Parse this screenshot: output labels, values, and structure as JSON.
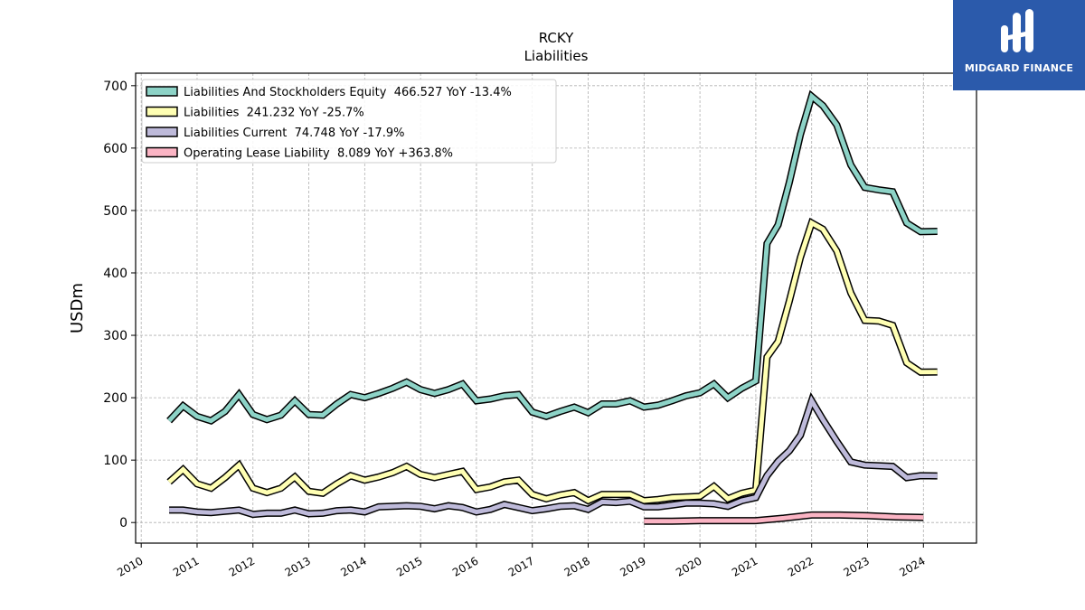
{
  "logo": {
    "text": "MIDGARD FINANCE",
    "background": "#2b5aab"
  },
  "chart_data": {
    "type": "line",
    "title": "RCKY",
    "subtitle": "Liabilities",
    "ylabel": "USDm",
    "xlabel": "",
    "xlim": [
      2009.9,
      2024.95
    ],
    "ylim": [
      -33,
      720
    ],
    "yticks": [
      0,
      100,
      200,
      300,
      400,
      500,
      600,
      700
    ],
    "xticks": [
      "2010",
      "2011",
      "2012",
      "2013",
      "2014",
      "2015",
      "2016",
      "2017",
      "2018",
      "2019",
      "2020",
      "2021",
      "2022",
      "2023",
      "2024"
    ],
    "grid": true,
    "legend_position": "top-left",
    "series": [
      {
        "name": "Liabilities And Stockholders Equity  466.527 YoY -13.4%",
        "color": "#8dd3c7",
        "x": [
          2010.5,
          2010.75,
          2011.0,
          2011.25,
          2011.5,
          2011.75,
          2012.0,
          2012.25,
          2012.5,
          2012.75,
          2013.0,
          2013.25,
          2013.5,
          2013.75,
          2014.0,
          2014.25,
          2014.5,
          2014.75,
          2015.0,
          2015.25,
          2015.5,
          2015.75,
          2016.0,
          2016.25,
          2016.5,
          2016.75,
          2017.0,
          2017.25,
          2017.5,
          2017.75,
          2018.0,
          2018.25,
          2018.5,
          2018.75,
          2019.0,
          2019.25,
          2019.5,
          2019.75,
          2020.0,
          2020.25,
          2020.5,
          2020.75,
          2021.0,
          2021.2,
          2021.4,
          2021.6,
          2021.8,
          2022.0,
          2022.2,
          2022.45,
          2022.7,
          2022.95,
          2023.2,
          2023.45,
          2023.7,
          2023.95,
          2024.25
        ],
        "y": [
          163,
          187,
          170,
          163,
          178,
          205,
          173,
          165,
          172,
          195,
          173,
          172,
          190,
          205,
          200,
          207,
          215,
          225,
          213,
          207,
          213,
          222,
          195,
          198,
          203,
          205,
          177,
          170,
          178,
          185,
          176,
          190,
          190,
          195,
          185,
          188,
          195,
          203,
          208,
          222,
          200,
          215,
          227,
          447,
          477,
          545,
          622,
          683,
          668,
          637,
          573,
          537,
          533,
          530,
          480,
          466,
          466.527
        ]
      },
      {
        "name": "Liabilities  241.232 YoY -25.7%",
        "color": "#ffffb3",
        "x": [
          2010.5,
          2010.75,
          2011.0,
          2011.25,
          2011.5,
          2011.75,
          2012.0,
          2012.25,
          2012.5,
          2012.75,
          2013.0,
          2013.25,
          2013.5,
          2013.75,
          2014.0,
          2014.25,
          2014.5,
          2014.75,
          2015.0,
          2015.25,
          2015.5,
          2015.75,
          2016.0,
          2016.25,
          2016.5,
          2016.75,
          2017.0,
          2017.25,
          2017.5,
          2017.75,
          2018.0,
          2018.25,
          2018.5,
          2018.75,
          2019.0,
          2019.25,
          2019.5,
          2019.75,
          2020.0,
          2020.25,
          2020.5,
          2020.75,
          2021.0,
          2021.2,
          2021.4,
          2021.6,
          2021.8,
          2022.0,
          2022.2,
          2022.45,
          2022.7,
          2022.95,
          2023.2,
          2023.45,
          2023.7,
          2023.95,
          2024.25
        ],
        "y": [
          65,
          85,
          62,
          55,
          72,
          92,
          55,
          48,
          55,
          73,
          50,
          47,
          62,
          75,
          68,
          73,
          80,
          90,
          77,
          72,
          77,
          82,
          53,
          57,
          65,
          68,
          45,
          38,
          44,
          48,
          35,
          45,
          45,
          45,
          35,
          37,
          40,
          41,
          42,
          58,
          38,
          47,
          52,
          265,
          290,
          355,
          425,
          480,
          470,
          435,
          368,
          324,
          323,
          316,
          256,
          241,
          241.232
        ]
      },
      {
        "name": "Liabilities Current  74.748 YoY -17.9%",
        "color": "#bebada",
        "x": [
          2010.5,
          2010.75,
          2011.0,
          2011.25,
          2011.5,
          2011.75,
          2012.0,
          2012.25,
          2012.5,
          2012.75,
          2013.0,
          2013.25,
          2013.5,
          2013.75,
          2014.0,
          2014.25,
          2014.5,
          2014.75,
          2015.0,
          2015.25,
          2015.5,
          2015.75,
          2016.0,
          2016.25,
          2016.5,
          2016.75,
          2017.0,
          2017.25,
          2017.5,
          2017.75,
          2018.0,
          2018.25,
          2018.5,
          2018.75,
          2019.0,
          2019.25,
          2019.5,
          2019.75,
          2020.0,
          2020.25,
          2020.5,
          2020.75,
          2021.0,
          2021.2,
          2021.4,
          2021.6,
          2021.8,
          2022.0,
          2022.2,
          2022.45,
          2022.7,
          2022.95,
          2023.2,
          2023.45,
          2023.7,
          2023.95,
          2024.25
        ],
        "y": [
          20,
          20,
          17,
          16,
          18,
          20,
          13,
          15,
          15,
          20,
          14,
          15,
          19,
          20,
          17,
          25,
          26,
          27,
          26,
          22,
          27,
          24,
          17,
          21,
          29,
          24,
          19,
          22,
          26,
          27,
          21,
          33,
          32,
          34,
          25,
          25,
          28,
          31,
          31,
          30,
          26,
          35,
          40,
          75,
          98,
          115,
          140,
          195,
          165,
          130,
          97,
          92,
          91,
          90,
          72,
          75,
          74.748
        ]
      },
      {
        "name": "Operating Lease Liability  8.089 YoY +363.8%",
        "color": "#fbb4c4",
        "x": [
          2019.0,
          2019.5,
          2020.0,
          2020.5,
          2021.0,
          2021.5,
          2022.0,
          2022.5,
          2023.0,
          2023.5,
          2024.0
        ],
        "y": [
          2,
          2,
          3,
          3,
          3,
          7,
          12,
          12,
          11,
          9,
          8.089
        ]
      }
    ]
  }
}
